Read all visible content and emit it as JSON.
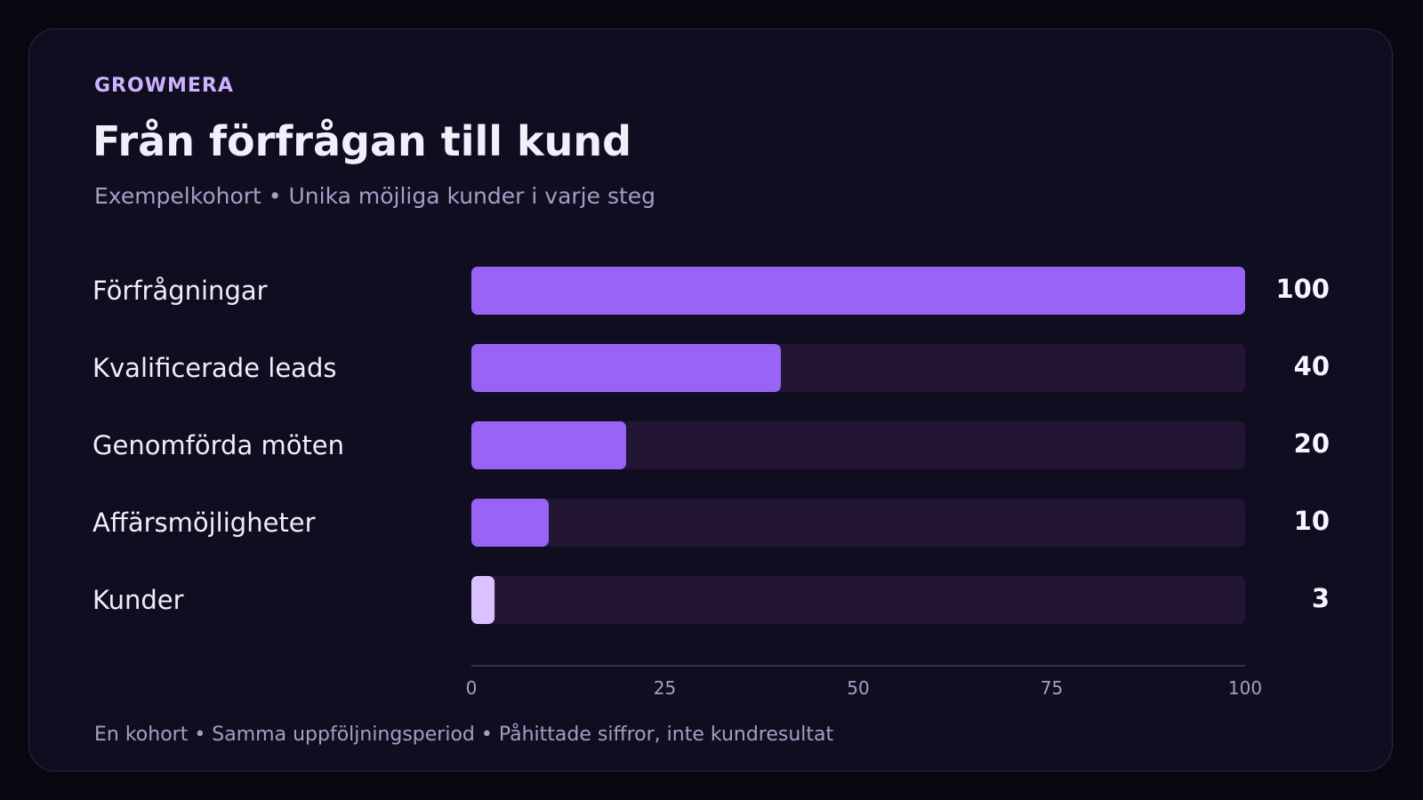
{
  "brand": "GROWMERA",
  "title": "Från förfrågan till kund",
  "subtitle": "Exempelkohort • Unika möjliga kunder i varje steg",
  "footer": "En kohort • Samma uppföljningsperiod • Påhittade siffror, inte kundresultat",
  "colors": {
    "bar": "#9963f5",
    "bar_last": "#d9c2ff",
    "track": "#221634",
    "axis": "#3a2f58",
    "label": "#f1ecfa",
    "value": "#f7f3ff",
    "tick": "#a89cc4"
  },
  "chart_data": {
    "type": "bar",
    "orientation": "horizontal",
    "categories": [
      "Förfrågningar",
      "Kvalificerade leads",
      "Genomförda möten",
      "Affärsmöjligheter",
      "Kunder"
    ],
    "values": [
      100,
      40,
      20,
      10,
      3
    ],
    "value_labels": [
      "100",
      "40",
      "20",
      "10",
      "3"
    ],
    "xlim": [
      0,
      100
    ],
    "xticks": [
      0,
      25,
      50,
      75,
      100
    ],
    "grid": false,
    "legend": "none"
  }
}
